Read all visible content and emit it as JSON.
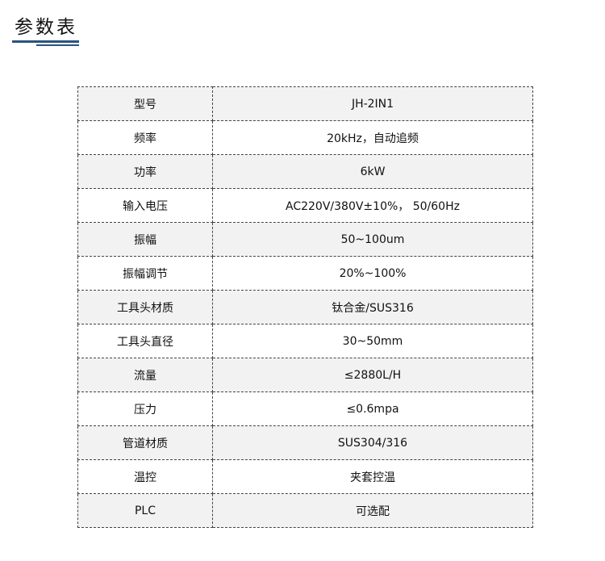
{
  "title": "参数表",
  "accent": "#2a5380",
  "rows": [
    {
      "label": "型号",
      "value": "JH-2IN1"
    },
    {
      "label": "频率",
      "value": "20kHz，自动追频"
    },
    {
      "label": "功率",
      "value": "6kW"
    },
    {
      "label": "输入电压",
      "value": "AC220V/380V±10%， 50/60Hz"
    },
    {
      "label": "振幅",
      "value": "50~100um"
    },
    {
      "label": "振幅调节",
      "value": "20%~100%"
    },
    {
      "label": "工具头材质",
      "value": "钛合金/SUS316"
    },
    {
      "label": "工具头直径",
      "value": "30~50mm"
    },
    {
      "label": "流量",
      "value": "≤2880L/H"
    },
    {
      "label": "压力",
      "value": "≤0.6mpa"
    },
    {
      "label": "管道材质",
      "value": "SUS304/316"
    },
    {
      "label": "温控",
      "value": "夹套控温"
    },
    {
      "label": "PLC",
      "value": "可选配"
    }
  ]
}
